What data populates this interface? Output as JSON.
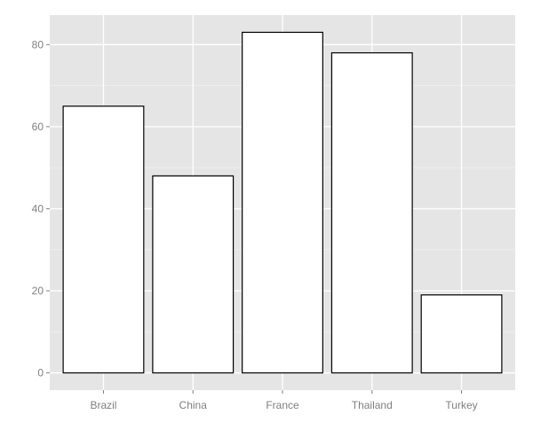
{
  "chart_data": {
    "type": "bar",
    "categories": [
      "Brazil",
      "China",
      "France",
      "Thailand",
      "Turkey"
    ],
    "values": [
      65,
      48,
      83,
      78,
      19
    ],
    "yticks": [
      0,
      20,
      40,
      60,
      80
    ],
    "ylim": [
      -4.2,
      87.2
    ],
    "grid": true,
    "legend": "none",
    "colors": {
      "panel_bg": "#e5e5e5",
      "grid_major": "#ffffff",
      "grid_minor": "#f2f2f2",
      "bar_fill": "#ffffff",
      "bar_stroke": "#000000",
      "tick_text": "#7f7f7f",
      "tick_mark": "#7f7f7f"
    }
  }
}
